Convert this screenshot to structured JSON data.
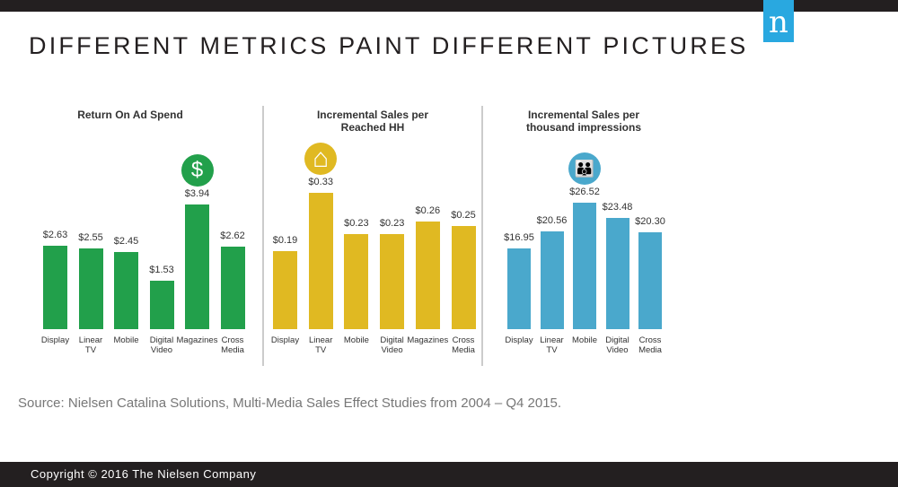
{
  "title": "DIFFERENT METRICS PAINT DIFFERENT PICTURES",
  "logo": "n",
  "source": "Source: Nielsen Catalina Solutions, Multi-Media Sales Effect Studies from 2004 – Q4 2015.",
  "copyright": "Copyright © 2016 The Nielsen Company",
  "chart_data": [
    {
      "type": "bar",
      "title": "Return On Ad Spend",
      "categories": [
        "Display",
        "Linear TV",
        "Mobile",
        "Digital Video",
        "Magazines",
        "Cross Media"
      ],
      "values": [
        2.63,
        2.55,
        2.45,
        1.53,
        3.94,
        2.62
      ],
      "labels": [
        "$2.63",
        "$2.55",
        "$2.45",
        "$1.53",
        "$3.94",
        "$2.62"
      ],
      "color": "#22a04b",
      "icon": "dollar-icon",
      "highlight": 4
    },
    {
      "type": "bar",
      "title": "Incremental Sales per Reached HH",
      "categories": [
        "Display",
        "Linear TV",
        "Mobile",
        "Digital Video",
        "Magazines",
        "Cross Media"
      ],
      "values": [
        0.19,
        0.33,
        0.23,
        0.23,
        0.26,
        0.25
      ],
      "labels": [
        "$0.19",
        "$0.33",
        "$0.23",
        "$0.23",
        "$0.26",
        "$0.25"
      ],
      "color": "#e0b922",
      "icon": "house-icon",
      "highlight": 1
    },
    {
      "type": "bar",
      "title": "Incremental Sales per thousand impressions",
      "categories": [
        "Display",
        "Linear TV",
        "Mobile",
        "Digital Video",
        "Cross Media"
      ],
      "values": [
        16.95,
        20.56,
        26.52,
        23.48,
        20.3
      ],
      "labels": [
        "$16.95",
        "$20.56",
        "$26.52",
        "$23.48",
        "$20.30"
      ],
      "color": "#4aa8cc",
      "icon": "people-icon",
      "highlight": 2
    }
  ]
}
